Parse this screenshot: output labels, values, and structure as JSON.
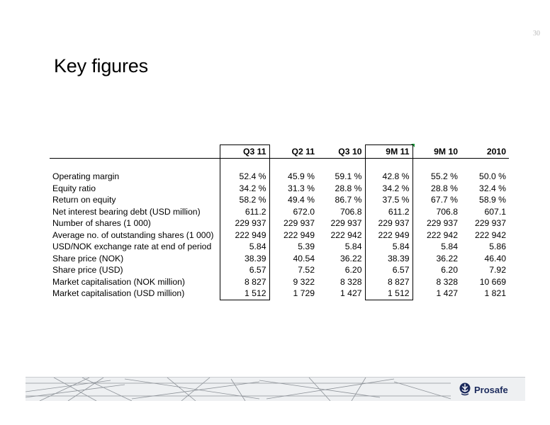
{
  "page_number": "30",
  "title": "Key figures",
  "table": {
    "headers": [
      "Q3 11",
      "Q2 11",
      "Q3 10",
      "9M 11",
      "9M 10",
      "2010"
    ],
    "rows": [
      {
        "label": "Operating margin",
        "values": [
          "52.4 %",
          "45.9 %",
          "59.1 %",
          "42.8 %",
          "55.2 %",
          "50.0 %"
        ]
      },
      {
        "label": "Equity ratio",
        "values": [
          "34.2 %",
          "31.3 %",
          "28.8 %",
          "34.2 %",
          "28.8 %",
          "32.4 %"
        ]
      },
      {
        "label": "Return on equity",
        "values": [
          "58.2 %",
          "49.4 %",
          "86.7 %",
          "37.5 %",
          "67.7 %",
          "58.9 %"
        ]
      },
      {
        "label": "Net interest bearing debt (USD million)",
        "values": [
          "611.2",
          "672.0",
          "706.8",
          "611.2",
          "706.8",
          "607.1"
        ]
      },
      {
        "label": "Number of shares (1 000)",
        "values": [
          "229 937",
          "229 937",
          "229 937",
          "229 937",
          "229 937",
          "229 937"
        ]
      },
      {
        "label": "Average no. of outstanding shares (1 000)",
        "values": [
          "222 949",
          "222 949",
          "222 942",
          "222 949",
          "222 942",
          "222 942"
        ]
      },
      {
        "label": "USD/NOK exchange rate at end of period",
        "values": [
          "5.84",
          "5.39",
          "5.84",
          "5.84",
          "5.84",
          "5.86"
        ]
      },
      {
        "label": "Share price (NOK)",
        "values": [
          "38.39",
          "40.54",
          "36.22",
          "38.39",
          "36.22",
          "46.40"
        ]
      },
      {
        "label": "Share price (USD)",
        "values": [
          "6.57",
          "7.52",
          "6.20",
          "6.57",
          "6.20",
          "7.92"
        ]
      },
      {
        "label": "Market capitalisation (NOK million)",
        "values": [
          "8 827",
          "9 322",
          "8 328",
          "8 827",
          "8 328",
          "10 669"
        ]
      },
      {
        "label": "Market capitalisation (USD million)",
        "values": [
          "1 512",
          "1 729",
          "1 427",
          "1 512",
          "1 427",
          "1 821"
        ]
      }
    ]
  },
  "logo": {
    "text": "Prosafe",
    "icon": "prosafe-logo-icon",
    "color": "#1b2a5c"
  },
  "colors": {
    "marker": "#1c9a3c",
    "footer_band": "#eef0f2"
  }
}
